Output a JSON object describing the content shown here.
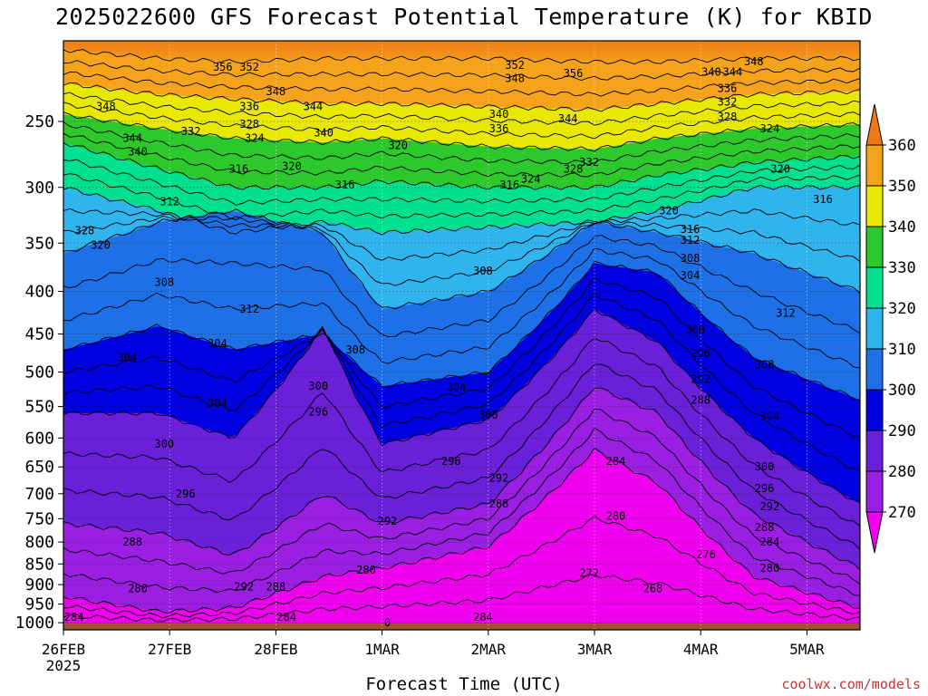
{
  "chart_data": {
    "type": "heatmap",
    "title": "2025022600 GFS Forecast Potential Temperature (K) for KBID",
    "xlabel": "Forecast Time (UTC)",
    "ylabel": "",
    "x_ticks": [
      "26FEB",
      "27FEB",
      "28FEB",
      "1MAR",
      "2MAR",
      "3MAR",
      "4MAR",
      "5MAR"
    ],
    "x_year_label": "2025",
    "y_ticks": [
      250,
      300,
      350,
      400,
      450,
      500,
      550,
      600,
      650,
      700,
      750,
      800,
      850,
      900,
      950,
      1000
    ],
    "ylim": [
      200,
      1020
    ],
    "y_scale": "log",
    "colorbar": {
      "levels": [
        270,
        280,
        290,
        300,
        310,
        320,
        330,
        340,
        350,
        360
      ],
      "colors": [
        "#ef00ef",
        "#9a1fe3",
        "#6a1fd8",
        "#0000e0",
        "#1e70e6",
        "#2fb4ee",
        "#00e090",
        "#2cc82c",
        "#e8e800",
        "#f4a31a",
        "#ee7a16"
      ]
    },
    "contour_labels": [
      {
        "v": "356",
        "t": 1.5,
        "p": 215
      },
      {
        "v": "352",
        "t": 1.75,
        "p": 215
      },
      {
        "v": "348",
        "t": 2.0,
        "p": 230
      },
      {
        "v": "344",
        "t": 2.35,
        "p": 240
      },
      {
        "v": "340",
        "t": 2.45,
        "p": 258
      },
      {
        "v": "336",
        "t": 1.75,
        "p": 240
      },
      {
        "v": "328",
        "t": 1.75,
        "p": 252
      },
      {
        "v": "324",
        "t": 1.8,
        "p": 262
      },
      {
        "v": "332",
        "t": 1.2,
        "p": 257
      },
      {
        "v": "348",
        "t": 0.4,
        "p": 240
      },
      {
        "v": "344",
        "t": 0.65,
        "p": 262
      },
      {
        "v": "340",
        "t": 0.7,
        "p": 272
      },
      {
        "v": "316",
        "t": 1.65,
        "p": 285
      },
      {
        "v": "320",
        "t": 2.15,
        "p": 283
      },
      {
        "v": "320",
        "t": 3.15,
        "p": 267
      },
      {
        "v": "316",
        "t": 2.65,
        "p": 298
      },
      {
        "v": "312",
        "t": 1.0,
        "p": 312
      },
      {
        "v": "328",
        "t": 0.2,
        "p": 338
      },
      {
        "v": "320",
        "t": 0.35,
        "p": 352
      },
      {
        "v": "352",
        "t": 4.25,
        "p": 214
      },
      {
        "v": "348",
        "t": 4.25,
        "p": 222
      },
      {
        "v": "356",
        "t": 4.8,
        "p": 219
      },
      {
        "v": "340",
        "t": 4.1,
        "p": 245
      },
      {
        "v": "336",
        "t": 4.1,
        "p": 255
      },
      {
        "v": "344",
        "t": 4.75,
        "p": 248
      },
      {
        "v": "316",
        "t": 4.2,
        "p": 298
      },
      {
        "v": "324",
        "t": 4.4,
        "p": 293
      },
      {
        "v": "328",
        "t": 4.8,
        "p": 285
      },
      {
        "v": "332",
        "t": 4.95,
        "p": 280
      },
      {
        "v": "320",
        "t": 5.7,
        "p": 320
      },
      {
        "v": "316",
        "t": 5.9,
        "p": 337
      },
      {
        "v": "312",
        "t": 5.9,
        "p": 347
      },
      {
        "v": "308",
        "t": 5.9,
        "p": 365
      },
      {
        "v": "304",
        "t": 5.9,
        "p": 383
      },
      {
        "v": "340",
        "t": 6.1,
        "p": 218
      },
      {
        "v": "344",
        "t": 6.3,
        "p": 218
      },
      {
        "v": "348",
        "t": 6.5,
        "p": 212
      },
      {
        "v": "336",
        "t": 6.25,
        "p": 228
      },
      {
        "v": "332",
        "t": 6.25,
        "p": 237
      },
      {
        "v": "328",
        "t": 6.25,
        "p": 247
      },
      {
        "v": "324",
        "t": 6.65,
        "p": 255
      },
      {
        "v": "320",
        "t": 6.75,
        "p": 285
      },
      {
        "v": "316",
        "t": 7.15,
        "p": 310
      },
      {
        "v": "312",
        "t": 6.8,
        "p": 425
      },
      {
        "v": "308",
        "t": 6.6,
        "p": 490
      },
      {
        "v": "304",
        "t": 6.65,
        "p": 565
      },
      {
        "v": "300",
        "t": 6.6,
        "p": 650
      },
      {
        "v": "296",
        "t": 6.6,
        "p": 690
      },
      {
        "v": "292",
        "t": 6.65,
        "p": 725
      },
      {
        "v": "288",
        "t": 6.6,
        "p": 768
      },
      {
        "v": "284",
        "t": 6.65,
        "p": 800
      },
      {
        "v": "280",
        "t": 6.65,
        "p": 860
      },
      {
        "v": "276",
        "t": 6.05,
        "p": 828
      },
      {
        "v": "308",
        "t": 0.95,
        "p": 390
      },
      {
        "v": "312",
        "t": 1.75,
        "p": 420
      },
      {
        "v": "304",
        "t": 0.6,
        "p": 480
      },
      {
        "v": "304",
        "t": 1.45,
        "p": 462
      },
      {
        "v": "308",
        "t": 2.75,
        "p": 470
      },
      {
        "v": "304",
        "t": 1.45,
        "p": 545
      },
      {
        "v": "300",
        "t": 2.4,
        "p": 520
      },
      {
        "v": "296",
        "t": 2.4,
        "p": 558
      },
      {
        "v": "308",
        "t": 3.95,
        "p": 378
      },
      {
        "v": "304",
        "t": 3.7,
        "p": 522
      },
      {
        "v": "300",
        "t": 4.0,
        "p": 563
      },
      {
        "v": "296",
        "t": 3.65,
        "p": 640
      },
      {
        "v": "292",
        "t": 4.1,
        "p": 670
      },
      {
        "v": "300",
        "t": 0.95,
        "p": 610
      },
      {
        "v": "296",
        "t": 1.15,
        "p": 700
      },
      {
        "v": "288",
        "t": 0.65,
        "p": 800
      },
      {
        "v": "280",
        "t": 0.7,
        "p": 910
      },
      {
        "v": "284",
        "t": 0.1,
        "p": 985
      },
      {
        "v": "292",
        "t": 1.7,
        "p": 905
      },
      {
        "v": "288",
        "t": 2.0,
        "p": 905
      },
      {
        "v": "284",
        "t": 2.1,
        "p": 985
      },
      {
        "v": "292",
        "t": 3.05,
        "p": 755
      },
      {
        "v": "280",
        "t": 2.85,
        "p": 865
      },
      {
        "v": "288",
        "t": 4.1,
        "p": 720
      },
      {
        "v": "284",
        "t": 3.95,
        "p": 985
      },
      {
        "v": "284",
        "t": 5.2,
        "p": 640
      },
      {
        "v": "280",
        "t": 5.2,
        "p": 745
      },
      {
        "v": "272",
        "t": 4.95,
        "p": 872
      },
      {
        "v": "268",
        "t": 5.55,
        "p": 910
      },
      {
        "v": "300",
        "t": 5.95,
        "p": 445
      },
      {
        "v": "296",
        "t": 6.0,
        "p": 475
      },
      {
        "v": "292",
        "t": 6.0,
        "p": 510
      },
      {
        "v": "288",
        "t": 6.0,
        "p": 540
      },
      {
        "v": "0",
        "t": 3.05,
        "p": 1000
      }
    ]
  },
  "watermark": "coolwx.com/models"
}
